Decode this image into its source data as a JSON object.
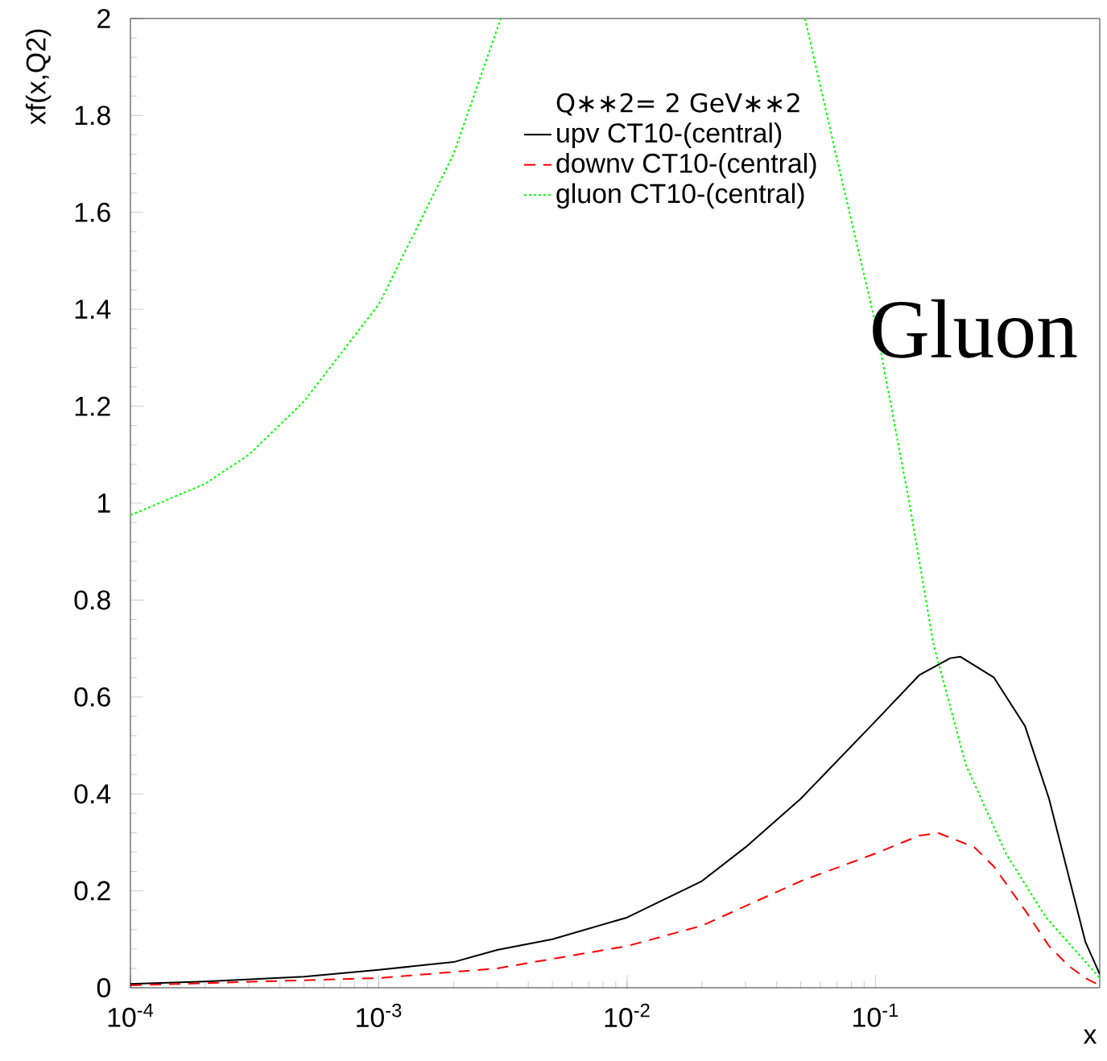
{
  "chart_data": {
    "type": "line",
    "xlabel": "x",
    "ylabel": "xf(x,Q2)",
    "log": "x",
    "legend": "top right",
    "legend_title": "Q∗∗2= 2 GeV∗∗2",
    "marker": "none",
    "grid": false,
    "xlim": [
      0.0001,
      0.8
    ],
    "ylim": [
      0,
      2
    ],
    "xticks": [
      {
        "value": 0.0001,
        "label": "10$^{-4}$"
      },
      {
        "value": 0.001,
        "label": "10$^{-3}$"
      },
      {
        "value": 0.01,
        "label": "10$^{-2}$"
      },
      {
        "value": 0.1,
        "label": "10$^{-1}$"
      }
    ],
    "yticks": [
      0,
      0.2,
      0.4,
      0.6,
      0.8,
      1,
      1.2,
      1.4,
      1.6,
      1.8,
      2
    ],
    "annotations": [
      "Gluon"
    ],
    "series": [
      {
        "name": "upv CT10-(central)",
        "color": "#000000",
        "line_style": "solid",
        "x": [
          0.0001,
          0.0002,
          0.0005,
          0.001,
          0.002,
          0.003,
          0.005,
          0.01,
          0.02,
          0.03,
          0.05,
          0.1,
          0.15,
          0.2,
          0.22,
          0.3,
          0.4,
          0.5,
          0.6,
          0.7,
          0.8
        ],
        "values": [
          0.008,
          0.013,
          0.023,
          0.037,
          0.053,
          0.078,
          0.1,
          0.145,
          0.22,
          0.29,
          0.39,
          0.55,
          0.645,
          0.68,
          0.683,
          0.64,
          0.54,
          0.39,
          0.23,
          0.095,
          0.028
        ]
      },
      {
        "name": "downv CT10-(central)",
        "color": "#ff0000",
        "line_style": "dashed",
        "x": [
          0.0001,
          0.001,
          0.003,
          0.01,
          0.02,
          0.05,
          0.1,
          0.15,
          0.18,
          0.25,
          0.3,
          0.4,
          0.5,
          0.6,
          0.7,
          0.8
        ],
        "values": [
          0.005,
          0.02,
          0.04,
          0.086,
          0.128,
          0.22,
          0.277,
          0.314,
          0.319,
          0.29,
          0.25,
          0.16,
          0.086,
          0.045,
          0.02,
          0.005
        ]
      },
      {
        "name": "gluon CT10-(central)",
        "color": "#00ff00",
        "line_style": "dotted",
        "x": [
          0.0001,
          0.0002,
          0.0003,
          0.0005,
          0.001,
          0.002,
          0.0031,
          0.01,
          0.052,
          0.07,
          0.1,
          0.137,
          0.171,
          0.231,
          0.335,
          0.486,
          0.8
        ],
        "values": [
          0.975,
          1.04,
          1.1,
          1.21,
          1.41,
          1.72,
          2.0,
          null,
          2.0,
          1.71,
          1.37,
          1.0,
          0.71,
          0.46,
          0.277,
          0.145,
          0.02
        ]
      }
    ]
  }
}
